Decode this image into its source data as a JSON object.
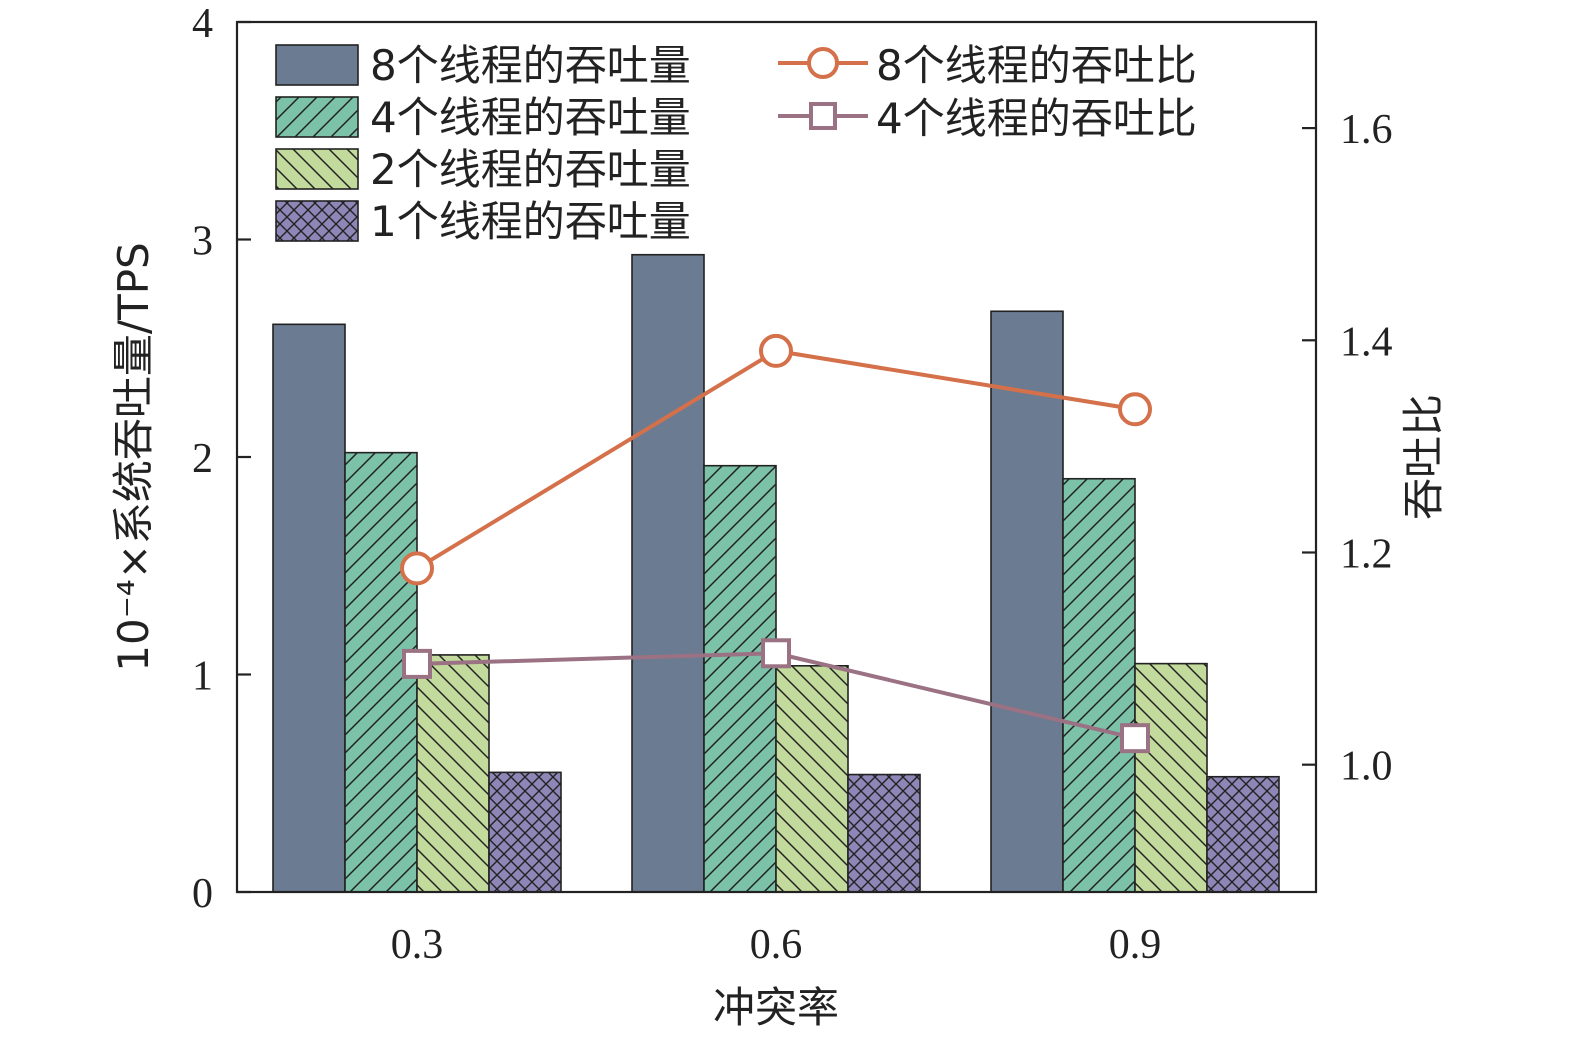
{
  "chart_data": {
    "type": "bar",
    "categories": [
      "0.3",
      "0.6",
      "0.9"
    ],
    "xlabel": "冲突率",
    "ylabel": "10⁻⁴×系统吞吐量/TPS",
    "y2label": "吞吐比",
    "ylim": [
      0,
      4
    ],
    "yticks": [
      "0",
      "1",
      "2",
      "3",
      "4"
    ],
    "y2lim": [
      0.88,
      1.7
    ],
    "y2ticks": [
      "1.0",
      "1.2",
      "1.4",
      "1.6"
    ],
    "grid": false,
    "legend_position": "top-left",
    "series": [
      {
        "name": "8个线程的吞吐量",
        "kind": "bar",
        "values": [
          2.61,
          2.93,
          2.67
        ],
        "color": "#6b7b91",
        "pattern": "solid"
      },
      {
        "name": "4个线程的吞吐量",
        "kind": "bar",
        "values": [
          2.02,
          1.96,
          1.9
        ],
        "color": "#7cc2a8",
        "pattern": "hatch-forward"
      },
      {
        "name": "2个线程的吞吐量",
        "kind": "bar",
        "values": [
          1.09,
          1.04,
          1.05
        ],
        "color": "#c2db9c",
        "pattern": "hatch-back"
      },
      {
        "name": "1个线程的吞吐量",
        "kind": "bar",
        "values": [
          0.55,
          0.54,
          0.53
        ],
        "color": "#8f86b8",
        "pattern": "crosshatch"
      }
    ],
    "ratio_series": [
      {
        "name": "8个线程的吞吐比",
        "kind": "line",
        "axis": "right",
        "marker": "circle",
        "values": [
          1.185,
          1.39,
          1.335
        ],
        "color": "#d4704a"
      },
      {
        "name": "4个线程的吞吐比",
        "kind": "line",
        "axis": "right",
        "marker": "square",
        "values": [
          1.095,
          1.105,
          1.025
        ],
        "color": "#9a7283"
      }
    ]
  }
}
